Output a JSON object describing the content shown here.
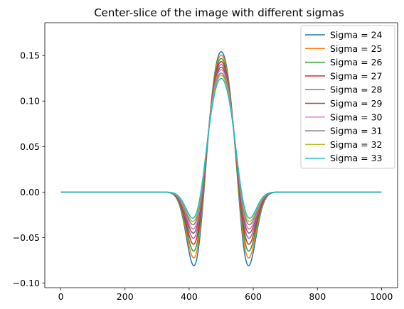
{
  "chart_data": {
    "type": "line",
    "title": "Center-slice of the image with different sigmas",
    "xlabel": "",
    "ylabel": "",
    "xlim": [
      -50,
      1050
    ],
    "ylim": [
      -0.105,
      0.186
    ],
    "x_ticks": [
      0,
      200,
      400,
      600,
      800,
      1000
    ],
    "x_tick_labels": [
      "0",
      "200",
      "400",
      "600",
      "800",
      "1000"
    ],
    "y_ticks": [
      -0.1,
      -0.05,
      0.0,
      0.05,
      0.1,
      0.15
    ],
    "y_tick_labels": [
      "−0.10",
      "−0.05",
      "0.00",
      "0.05",
      "0.10",
      "0.15"
    ],
    "grid": false,
    "legend_position": "upper right",
    "center": 500,
    "series": [
      {
        "name": "Sigma = 24",
        "color": "#1f77b4",
        "peak": 0.176,
        "shoulder": 0.174,
        "trough": -0.092
      },
      {
        "name": "Sigma = 25",
        "color": "#ff7f0e",
        "peak": 0.174,
        "shoulder": 0.172,
        "trough": -0.083
      },
      {
        "name": "Sigma = 26",
        "color": "#2ca02c",
        "peak": 0.172,
        "shoulder": 0.171,
        "trough": -0.075
      },
      {
        "name": "Sigma = 27",
        "color": "#d62728",
        "peak": 0.17,
        "shoulder": 0.169,
        "trough": -0.067
      },
      {
        "name": "Sigma = 28",
        "color": "#9467bd",
        "peak": 0.168,
        "shoulder": 0.167,
        "trough": -0.06
      },
      {
        "name": "Sigma = 29",
        "color": "#8c564b",
        "peak": 0.166,
        "shoulder": 0.165,
        "trough": -0.054
      },
      {
        "name": "Sigma = 30",
        "color": "#e377c2",
        "peak": 0.164,
        "shoulder": 0.163,
        "trough": -0.049
      },
      {
        "name": "Sigma = 31",
        "color": "#7f7f7f",
        "peak": 0.161,
        "shoulder": 0.161,
        "trough": -0.044
      },
      {
        "name": "Sigma = 32",
        "color": "#bcbd22",
        "peak": 0.159,
        "shoulder": 0.159,
        "trough": -0.04
      },
      {
        "name": "Sigma = 33",
        "color": "#17becf",
        "peak": 0.156,
        "shoulder": 0.157,
        "trough": -0.036
      }
    ]
  }
}
